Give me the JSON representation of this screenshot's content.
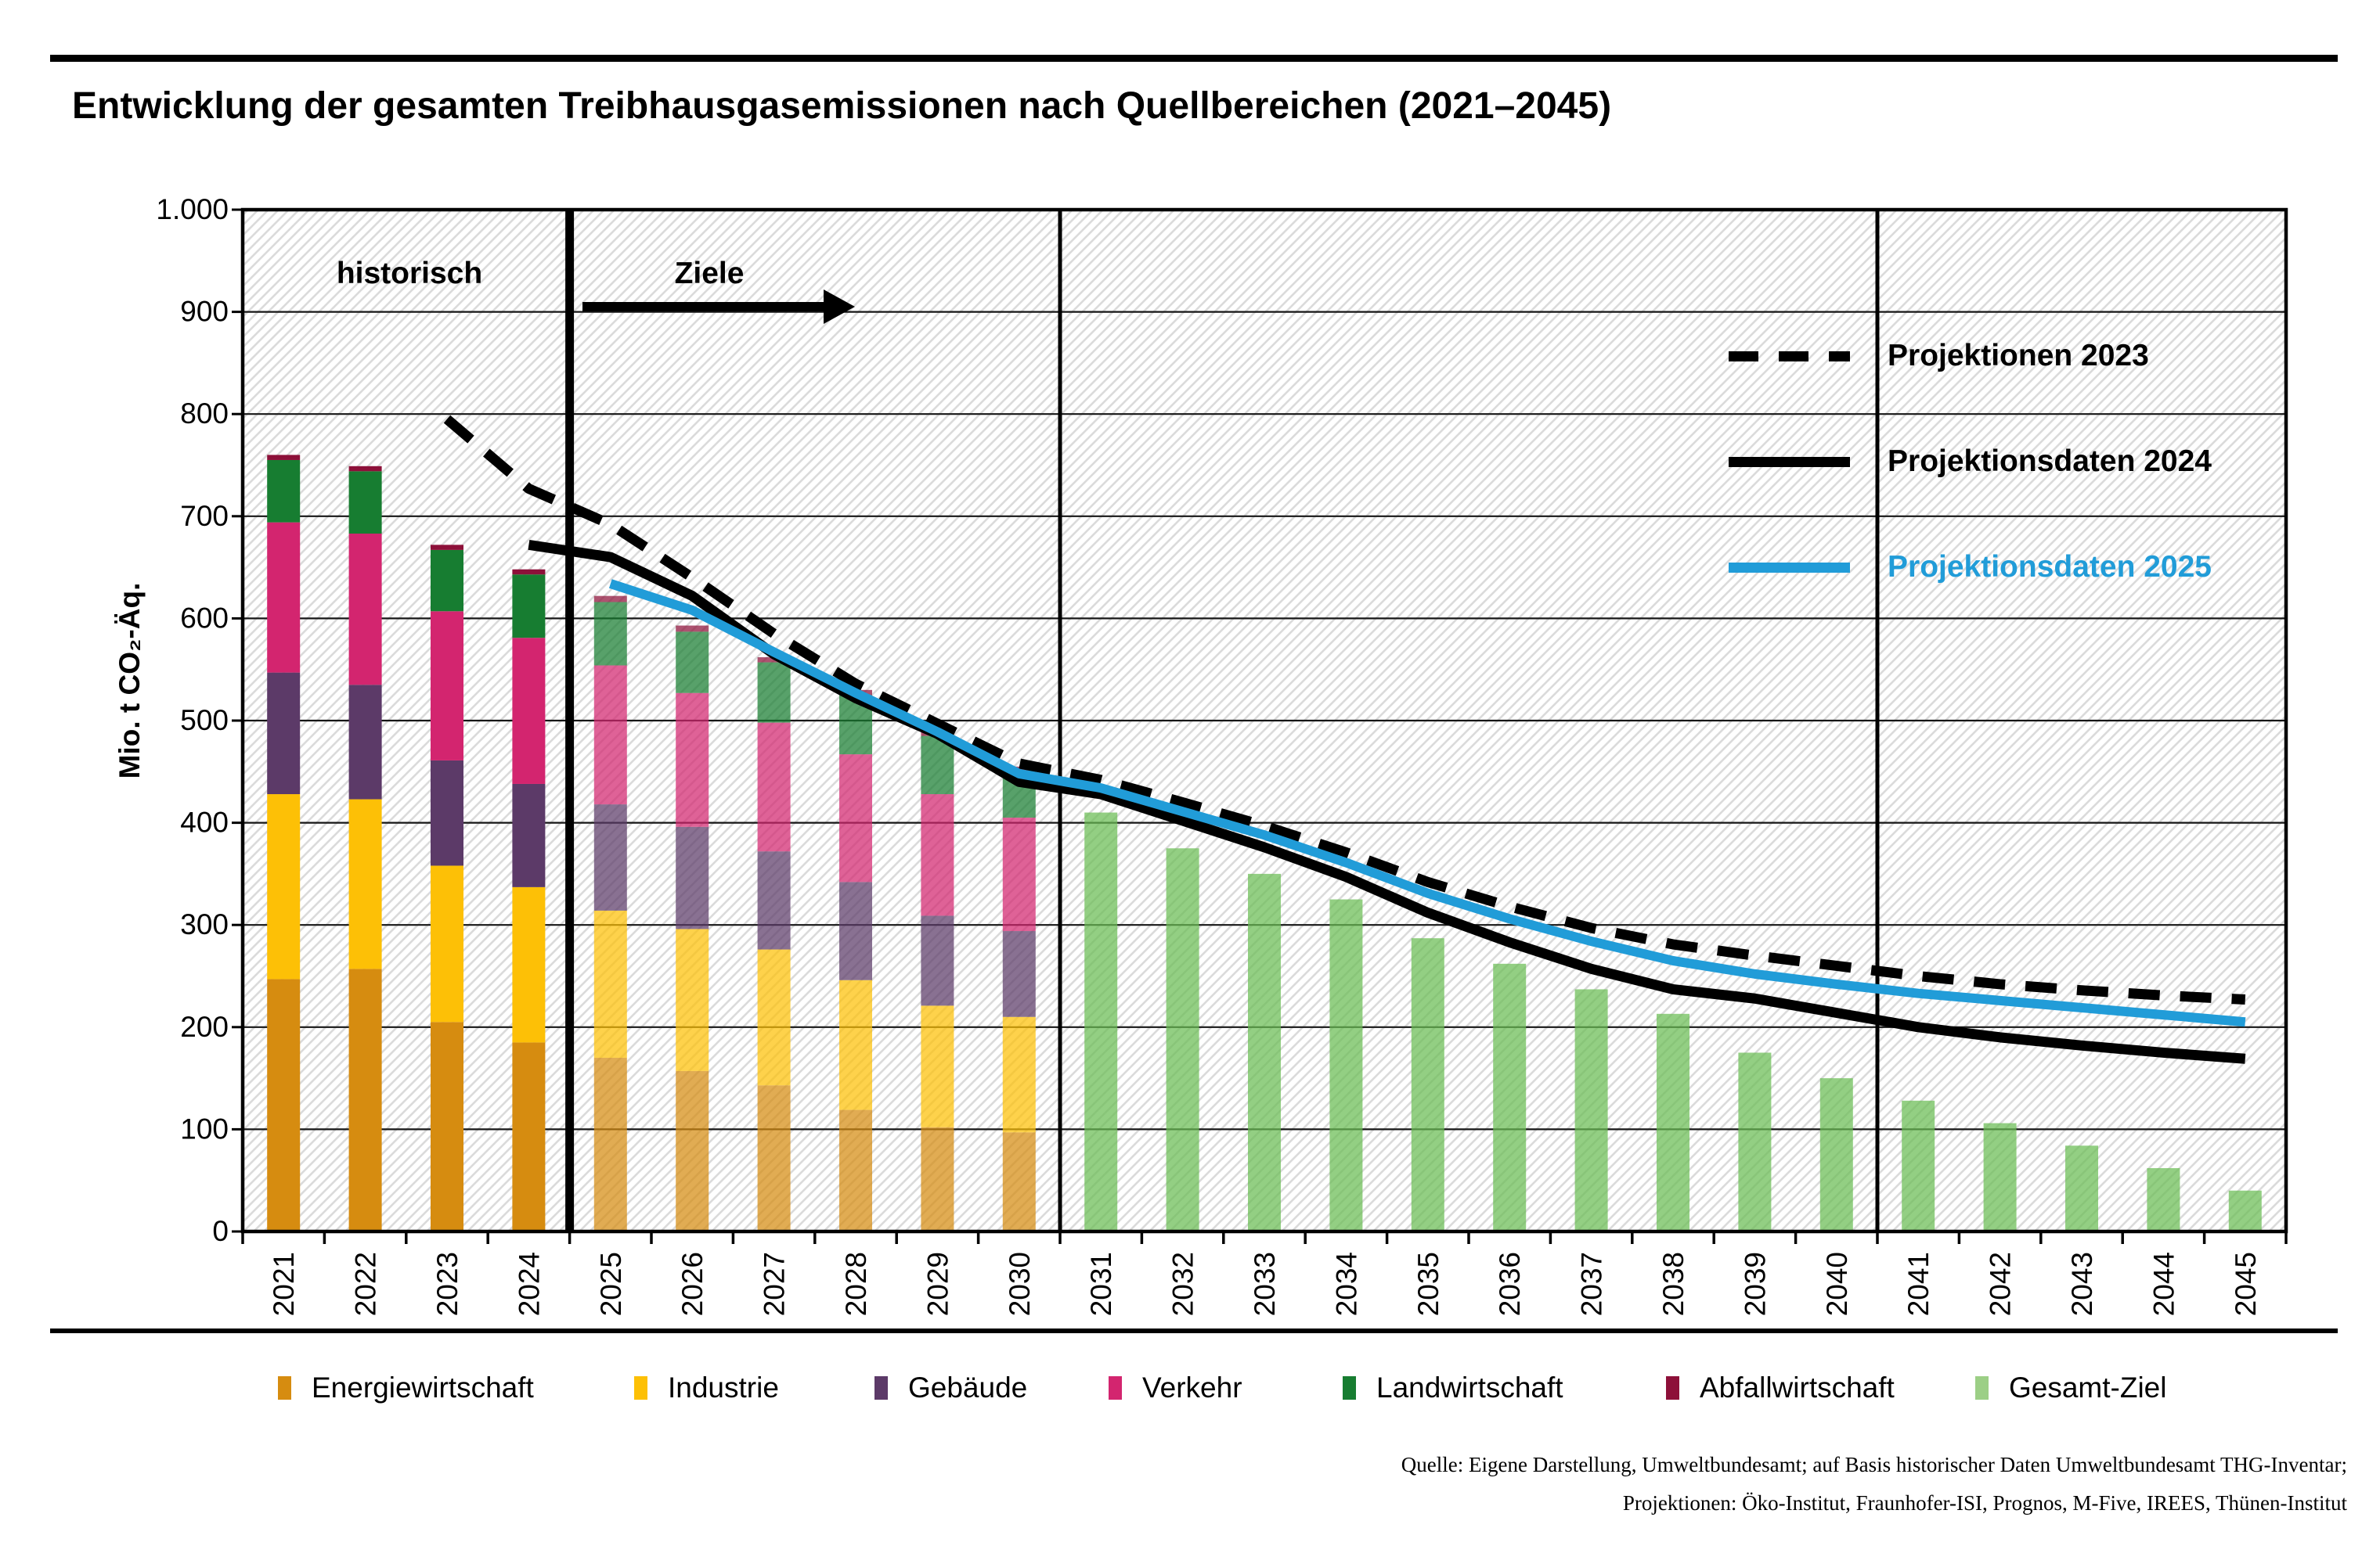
{
  "title": "Entwicklung der gesamten Treibhausgasemissionen nach Quellbereichen (2021–2045)",
  "y_axis": {
    "title": "Mio. t CO₂-Äq.",
    "ticks": [
      {
        "label": "1.000",
        "value": 1000
      },
      {
        "label": "900",
        "value": 900
      },
      {
        "label": "800",
        "value": 800
      },
      {
        "label": "700",
        "value": 700
      },
      {
        "label": "600",
        "value": 600
      },
      {
        "label": "500",
        "value": 500
      },
      {
        "label": "400",
        "value": 400
      },
      {
        "label": "300",
        "value": 300
      },
      {
        "label": "200",
        "value": 200
      },
      {
        "label": "100",
        "value": 100
      },
      {
        "label": "0",
        "value": 0
      }
    ]
  },
  "annotations": {
    "historical": "historisch",
    "targets": "Ziele"
  },
  "line_legend": [
    {
      "label": "Projektionen 2023",
      "style": "dashed",
      "color": "#000000"
    },
    {
      "label": "Projektionsdaten 2024",
      "style": "solid",
      "color": "#000000"
    },
    {
      "label": "Projektionsdaten 2025",
      "style": "blue",
      "color": "#219CD8"
    }
  ],
  "legend": [
    {
      "label": "Energiewirtschaft",
      "color": "#D68C10"
    },
    {
      "label": "Industrie",
      "color": "#FDC006"
    },
    {
      "label": "Gebäude",
      "color": "#5C3A68"
    },
    {
      "label": "Verkehr",
      "color": "#D3256F"
    },
    {
      "label": "Landwirtschaft",
      "color": "#177D31"
    },
    {
      "label": "Abfallwirtschaft",
      "color": "#8D1039"
    },
    {
      "label": "Gesamt-Ziel",
      "color": "#9CCF86"
    }
  ],
  "source": {
    "line1": "Quelle: Eigene Darstellung, Umweltbundesamt; auf Basis historischer Daten Umweltbundesamt THG-Inventar;",
    "line2": "Projektionen: Öko-Institut, Fraunhofer-ISI, Prognos, M-Five, IREES, Thünen-Institut"
  },
  "colors": {
    "sector_colors": {
      "Energiewirtschaft": "#D68C10",
      "Industrie": "#FDC006",
      "Gebäude": "#5C3A68",
      "Verkehr": "#D3256F",
      "Landwirtschaft": "#177D31",
      "Abfallwirtschaft": "#8D1039"
    },
    "gesamt_ziel": "#69BD53",
    "projection_blue": "#219CD8",
    "hatch": "#DBDBDB",
    "grid": "#161616",
    "target_bar_opacity": 0.72
  },
  "chart_data": {
    "type": "bar",
    "subtype": "stacked bars (historical 2021–2024, sector targets 2025–2030, total target 2031–2045) with projection lines",
    "unit": "Mio. t CO₂-Äq.",
    "ylim": [
      0,
      1000
    ],
    "years": [
      2021,
      2022,
      2023,
      2024,
      2025,
      2026,
      2027,
      2028,
      2029,
      2030,
      2031,
      2032,
      2033,
      2034,
      2035,
      2036,
      2037,
      2038,
      2039,
      2040,
      2041,
      2042,
      2043,
      2044,
      2045
    ],
    "stack_order": [
      "Energiewirtschaft",
      "Industrie",
      "Gebäude",
      "Verkehr",
      "Landwirtschaft",
      "Abfallwirtschaft"
    ],
    "sector_bars": {
      "years": [
        2021,
        2022,
        2023,
        2024,
        2025,
        2026,
        2027,
        2028,
        2029,
        2030
      ],
      "historical_years": [
        2021,
        2022,
        2023,
        2024
      ],
      "target_years": [
        2025,
        2026,
        2027,
        2028,
        2029,
        2030
      ],
      "values": {
        "Energiewirtschaft": [
          247,
          257,
          205,
          185,
          170,
          157,
          143,
          119,
          102,
          97
        ],
        "Industrie": [
          181,
          166,
          153,
          152,
          144,
          139,
          133,
          127,
          119,
          113
        ],
        "Gebäude": [
          119,
          112,
          103,
          101,
          104,
          100,
          96,
          96,
          88,
          84
        ],
        "Verkehr": [
          147,
          148,
          146,
          143,
          136,
          131,
          126,
          125,
          119,
          111
        ],
        "Landwirtschaft": [
          61,
          61,
          60,
          62,
          62,
          60,
          59,
          58,
          57,
          46
        ],
        "Abfallwirtschaft": [
          5,
          5,
          5,
          5,
          6,
          6,
          5,
          5,
          5,
          4
        ]
      }
    },
    "gesamt_ziel": {
      "name": "Gesamt-Ziel",
      "years": [
        2031,
        2032,
        2033,
        2034,
        2035,
        2036,
        2037,
        2038,
        2039,
        2040,
        2041,
        2042,
        2043,
        2044,
        2045
      ],
      "values": [
        410,
        375,
        350,
        325,
        287,
        262,
        237,
        213,
        175,
        150,
        128,
        106,
        84,
        62,
        40
      ]
    },
    "series": [
      {
        "name": "Projektionen 2023",
        "type": "line",
        "dashed": true,
        "color": "#000000",
        "x": [
          2023,
          2024,
          2025,
          2026,
          2027,
          2028,
          2029,
          2030,
          2031,
          2032,
          2033,
          2034,
          2035,
          2036,
          2037,
          2038,
          2039,
          2040,
          2041,
          2042,
          2043,
          2044,
          2045
        ],
        "y": [
          795,
          727,
          692,
          640,
          585,
          536,
          497,
          458,
          442,
          420,
          397,
          371,
          342,
          318,
          297,
          281,
          270,
          260,
          250,
          242,
          236,
          231,
          227
        ]
      },
      {
        "name": "Projektionsdaten 2024",
        "type": "line",
        "dashed": false,
        "color": "#000000",
        "x": [
          2024,
          2025,
          2026,
          2027,
          2028,
          2029,
          2030,
          2031,
          2032,
          2033,
          2034,
          2035,
          2036,
          2037,
          2038,
          2039,
          2040,
          2041,
          2042,
          2043,
          2044,
          2045
        ],
        "y": [
          672,
          660,
          622,
          565,
          522,
          487,
          440,
          428,
          402,
          376,
          347,
          312,
          283,
          257,
          237,
          228,
          214,
          200,
          190,
          182,
          175,
          169
        ]
      },
      {
        "name": "Projektionsdaten 2025",
        "type": "line",
        "dashed": false,
        "color": "#219CD8",
        "x": [
          2025,
          2026,
          2027,
          2028,
          2029,
          2030,
          2031,
          2032,
          2033,
          2034,
          2035,
          2036,
          2037,
          2038,
          2039,
          2040,
          2041,
          2042,
          2043,
          2044,
          2045
        ],
        "y": [
          634,
          608,
          567,
          527,
          489,
          448,
          434,
          411,
          388,
          361,
          331,
          306,
          284,
          265,
          252,
          242,
          233,
          226,
          219,
          212,
          205
        ]
      }
    ],
    "separators": [
      {
        "at": 2024.5,
        "weight": "thick"
      },
      {
        "at": 2030.5,
        "weight": "normal"
      },
      {
        "at": 2040.5,
        "weight": "normal"
      }
    ],
    "zones": [
      {
        "label": "historisch",
        "from": 2021,
        "to": 2024
      },
      {
        "label": "Ziele",
        "from": 2025,
        "to": 2045
      }
    ],
    "grid": "horizontal every 100, hatched background",
    "legend_position": "bottom"
  }
}
